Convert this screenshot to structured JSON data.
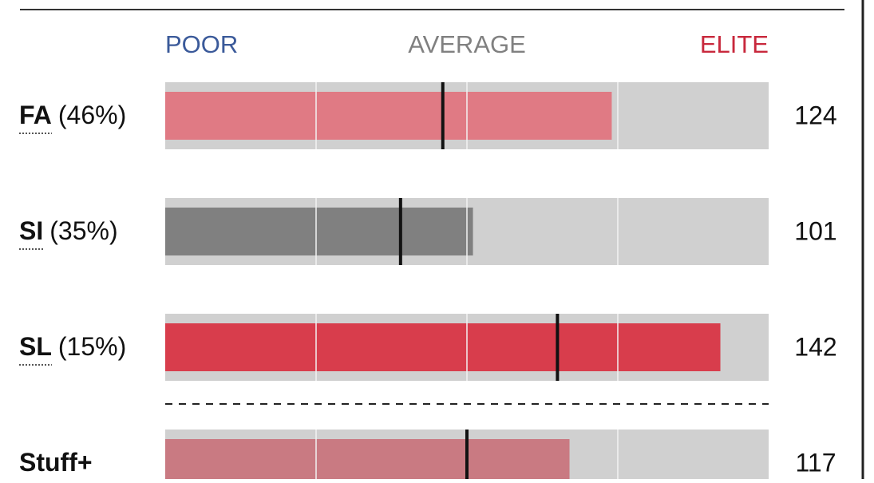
{
  "chart_data": {
    "type": "bar",
    "header_labels": [
      "POOR",
      "AVERAGE",
      "ELITE"
    ],
    "header_colors": [
      "#3b5a9a",
      "#808080",
      "#c8283c"
    ],
    "categories": [
      "FA",
      "SI",
      "SL",
      "Stuff+"
    ],
    "usage": [
      46,
      35,
      15,
      null
    ],
    "usage_labels": [
      "(46%)",
      "(35%)",
      "(15%)",
      null
    ],
    "values": [
      124,
      101,
      142,
      117
    ],
    "colors": [
      "#e07a84",
      "#808080",
      "#d83d4c",
      "#c97a82"
    ],
    "marker_values": [
      96,
      89,
      115,
      100
    ],
    "xlim": [
      50,
      150
    ],
    "xticks": [
      75,
      100,
      125
    ],
    "grid": true
  }
}
